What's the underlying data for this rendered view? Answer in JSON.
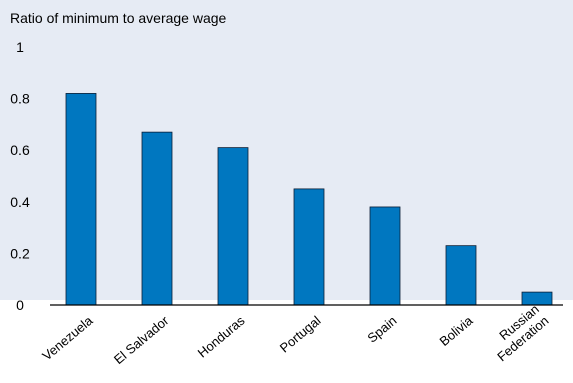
{
  "colors": {
    "panel": "#e6ebf4",
    "bar": "#0077c0",
    "bar_edge": "#0a1e36",
    "axis": "#000000",
    "text": "#000000"
  },
  "chart_data": {
    "type": "bar",
    "title": "Ratio of minimum to average wage",
    "xlabel": "",
    "ylabel": "",
    "ylim": [
      0,
      1
    ],
    "yticks": [
      "0",
      "0.2",
      "0.4",
      "0.6",
      "0.8",
      "1"
    ],
    "yticks_values": [
      0,
      0.2,
      0.4,
      0.6,
      0.8,
      1
    ],
    "categories": [
      "Venezuela",
      "El Salvador",
      "Honduras",
      "Portugal",
      "Spain",
      "Bolivia",
      "Russian Federation"
    ],
    "category_lines": [
      [
        "Venezuela"
      ],
      [
        "El Salvador"
      ],
      [
        "Honduras"
      ],
      [
        "Portugal"
      ],
      [
        "Spain"
      ],
      [
        "Bolivia"
      ],
      [
        "Russian",
        "Federation"
      ]
    ],
    "values": [
      0.82,
      0.67,
      0.61,
      0.45,
      0.38,
      0.23,
      0.05
    ],
    "grid": false,
    "legend": "none"
  }
}
